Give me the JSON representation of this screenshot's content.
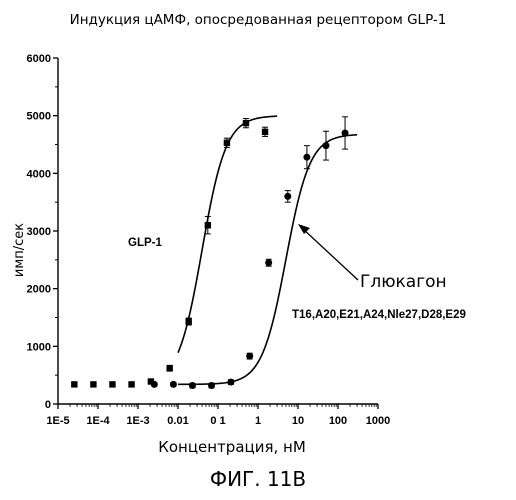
{
  "chart_data": {
    "type": "scatter",
    "title": "Индукция цАМФ, опосредованная рецептором GLP-1",
    "xlabel": "Концентрация, нМ",
    "ylabel": "имп/сек",
    "caption": "ФИГ. 11В",
    "x_scale": "log",
    "xlim": [
      1e-05,
      1000
    ],
    "ylim": [
      0,
      6000
    ],
    "x_ticks": [
      1e-05,
      0.0001,
      0.001,
      0.01,
      0.1,
      1,
      10,
      100,
      1000
    ],
    "x_tick_labels": [
      "1E-5",
      "1E-4",
      "1E-3",
      "0.01",
      "0 1",
      "1",
      "10",
      "100",
      "1000"
    ],
    "y_ticks": [
      0,
      1000,
      2000,
      3000,
      4000,
      5000,
      6000
    ],
    "y_tick_labels": [
      "0",
      "1000",
      "2000",
      "3000",
      "4000",
      "5000",
      "6000"
    ],
    "grid": false,
    "annotations": {
      "glp1_label": "GLP-1",
      "glucagon_label": "Глюкагон",
      "analog_label": "T16,A20,E21,A24,Nle27,D28,E29"
    },
    "series": [
      {
        "marker": "square",
        "x": [
          2.56e-05,
          7.68e-05,
          0.00023,
          0.00069,
          0.0021,
          0.0062,
          0.0185,
          0.0556,
          0.167,
          0.5,
          1.5
        ],
        "y": [
          340,
          340,
          340,
          340,
          390,
          620,
          1430,
          3100,
          4530,
          4870,
          4720
        ],
        "err": [
          30,
          30,
          30,
          30,
          30,
          50,
          60,
          150,
          80,
          80,
          80
        ],
        "fit": {
          "bottom": 340,
          "top": 5000,
          "ec50": 0.04,
          "hill": 1.45,
          "x_range": [
            0.01,
            3.0
          ]
        }
      },
      {
        "marker": "circle",
        "x": [
          0.00256,
          0.00768,
          0.023,
          0.069,
          0.21,
          0.62,
          1.85,
          5.56,
          16.7,
          50,
          150
        ],
        "y": [
          340,
          340,
          320,
          320,
          380,
          830,
          2450,
          3600,
          4280,
          4480,
          4700
        ],
        "err": [
          30,
          30,
          40,
          40,
          40,
          50,
          60,
          100,
          200,
          250,
          280
        ],
        "fit": {
          "bottom": 340,
          "top": 4680,
          "ec50": 5.0,
          "hill": 1.45,
          "x_range": [
            0.01,
            300
          ]
        }
      }
    ]
  }
}
